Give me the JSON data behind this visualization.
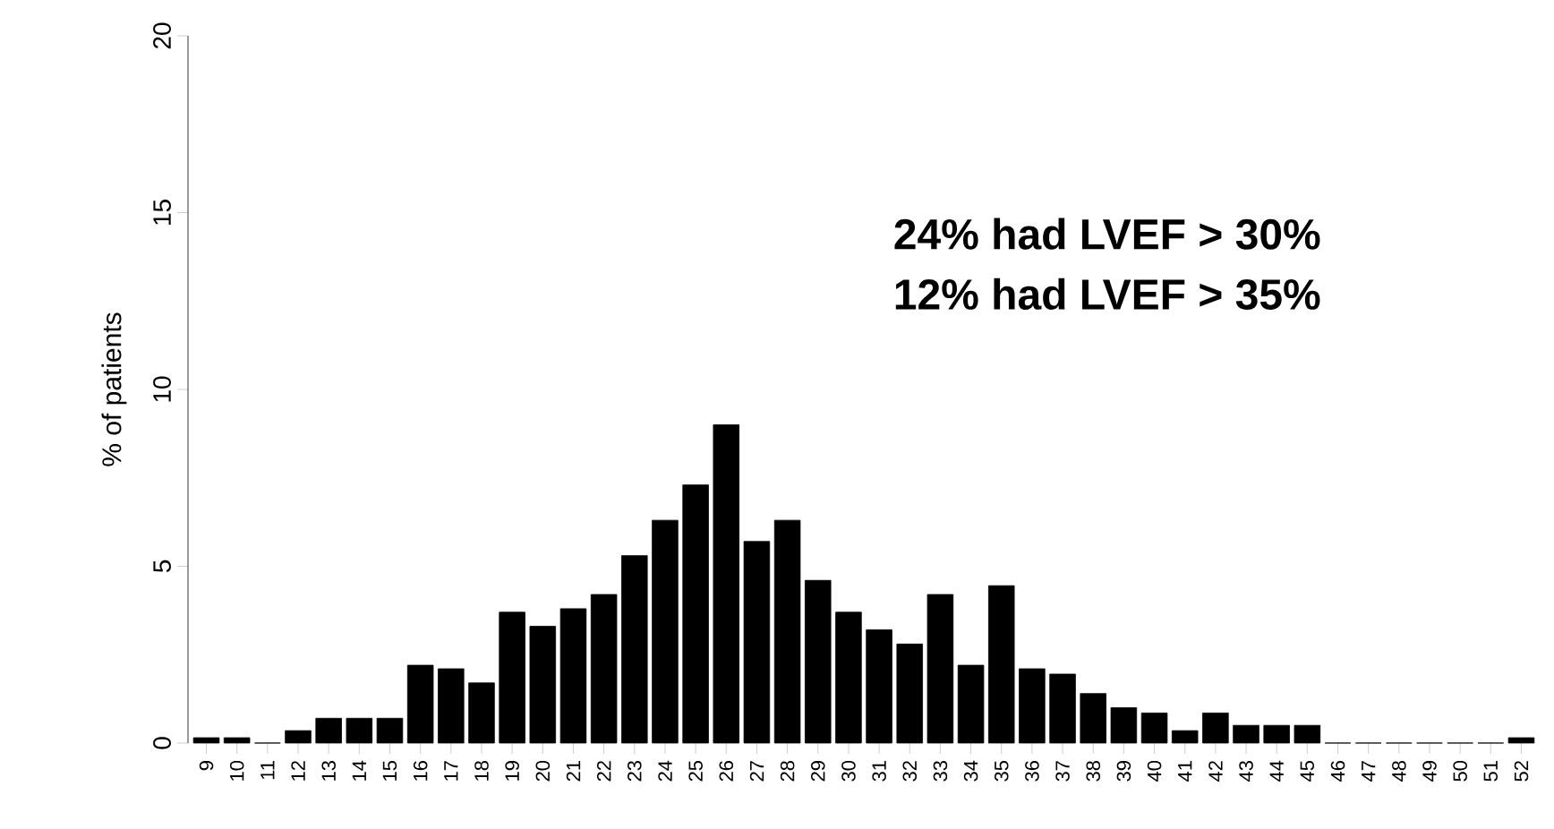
{
  "chart_data": {
    "type": "bar",
    "ylabel": "% of patients",
    "categories": [
      "9",
      "10",
      "11",
      "12",
      "13",
      "14",
      "15",
      "16",
      "17",
      "18",
      "19",
      "20",
      "21",
      "22",
      "23",
      "24",
      "25",
      "26",
      "27",
      "28",
      "29",
      "30",
      "31",
      "32",
      "33",
      "34",
      "35",
      "36",
      "37",
      "38",
      "39",
      "40",
      "41",
      "42",
      "43",
      "44",
      "45",
      "46",
      "47",
      "48",
      "49",
      "50",
      "51",
      "52"
    ],
    "values": [
      0.15,
      0.15,
      0,
      0.35,
      0.7,
      0.7,
      0.7,
      2.2,
      2.1,
      1.7,
      3.7,
      3.3,
      3.8,
      4.2,
      5.3,
      6.3,
      7.3,
      9.0,
      5.7,
      6.3,
      4.6,
      3.7,
      3.2,
      2.8,
      4.2,
      2.2,
      4.45,
      2.1,
      1.95,
      1.4,
      1.0,
      0.85,
      0.35,
      0.85,
      0.5,
      0.5,
      0.5,
      0,
      0,
      0,
      0,
      0,
      0,
      0.15
    ],
    "color": "#000000",
    "ylim": [
      0,
      20
    ],
    "yticks": [
      0,
      5,
      10,
      15,
      20
    ],
    "annotations": [
      "24% had LVEF > 30%",
      "12% had LVEF > 35%"
    ]
  }
}
